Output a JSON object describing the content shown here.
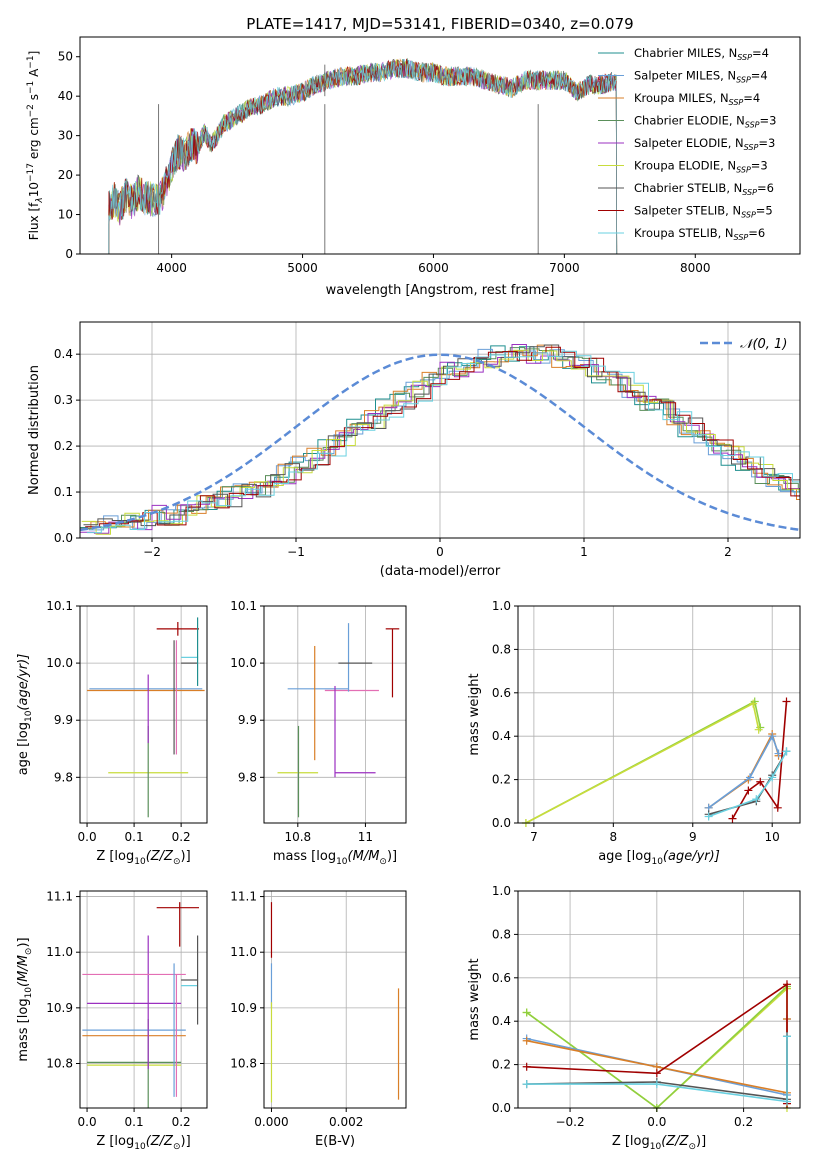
{
  "figure": {
    "title": "PLATE=1417, MJD=53141, FIBERID=0340, z=0.079"
  },
  "legend_colors": {
    "Chabrier MILES": "#1f8f8f",
    "Salpeter MILES": "#6a9fd8",
    "Kroupa MILES": "#d97f28",
    "Chabrier ELODIE": "#5a8f5a",
    "Salpeter ELODIE": "#9b30c0",
    "Kroupa ELODIE": "#c8dc3c",
    "Chabrier STELIB": "#555555",
    "Salpeter STELIB": "#a00000",
    "Kroupa STELIB": "#6ad0e0",
    "Kroupa ELODIE light": "#8fcf40",
    "pink": "#e36fb4"
  },
  "chart_data": [
    {
      "type": "line",
      "panel": "spectrum",
      "title": "PLATE=1417, MJD=53141, FIBERID=0340, z=0.079",
      "xlabel": "wavelength [Angstrom, rest frame]",
      "ylabel": "Flux [f",
      "ylabel_mid": "10",
      "ylabel_sup1": "−17",
      "ylabel_mid2": " erg cm",
      "ylabel_sup2": "−2",
      "ylabel_mid3": " s",
      "ylabel_sup3": "−1",
      "ylabel_mid4": " A",
      "ylabel_sup4": "−1",
      "ylabel_end": "]",
      "xlim": [
        3300,
        8800
      ],
      "ylim": [
        0,
        55
      ],
      "xticks": [
        4000,
        5000,
        6000,
        7000,
        8000
      ],
      "yticks": [
        0,
        10,
        20,
        30,
        40,
        50
      ],
      "grid": false,
      "legend_position": "upper right",
      "spectrum_envelope": {
        "x": [
          3520,
          3560,
          3600,
          3650,
          3700,
          3750,
          3800,
          3850,
          3900,
          3950,
          4000,
          4050,
          4100,
          4150,
          4200,
          4250,
          4300,
          4350,
          4400,
          4500,
          4600,
          4700,
          4800,
          4900,
          5000,
          5100,
          5200,
          5300,
          5400,
          5500,
          5600,
          5700,
          5800,
          5900,
          6000,
          6100,
          6200,
          6300,
          6400,
          6500,
          6600,
          6700,
          6800,
          6900,
          7000,
          7100,
          7200,
          7300,
          7400
        ],
        "y": [
          12,
          14,
          11,
          15,
          13,
          16,
          14,
          14,
          13,
          17,
          22,
          26,
          25,
          28,
          27,
          31,
          28,
          30,
          33,
          35,
          37,
          38,
          40,
          40,
          41,
          43,
          44,
          45,
          45,
          46,
          46,
          47,
          47,
          46,
          46,
          45,
          45,
          45,
          44,
          43,
          42,
          44,
          44,
          44,
          44,
          41,
          43,
          43,
          44
        ]
      },
      "series": [
        {
          "name": "Chabrier MILES, N",
          "sub": "SSP",
          "tail": "=4"
        },
        {
          "name": "Salpeter MILES, N",
          "sub": "SSP",
          "tail": "=4"
        },
        {
          "name": "Kroupa MILES, N",
          "sub": "SSP",
          "tail": "=4"
        },
        {
          "name": "Chabrier ELODIE, N",
          "sub": "SSP",
          "tail": "=3"
        },
        {
          "name": "Salpeter ELODIE, N",
          "sub": "SSP",
          "tail": "=3"
        },
        {
          "name": "Kroupa ELODIE, N",
          "sub": "SSP",
          "tail": "=3"
        },
        {
          "name": "Chabrier STELIB, N",
          "sub": "SSP",
          "tail": "=6"
        },
        {
          "name": "Salpeter STELIB, N",
          "sub": "SSP",
          "tail": "=5"
        },
        {
          "name": "Kroupa STELIB, N",
          "sub": "SSP",
          "tail": "=6"
        }
      ]
    },
    {
      "type": "bar",
      "panel": "residuals",
      "xlabel": "(data-model)/error",
      "ylabel": "Normed distribution",
      "xlim": [
        -2.5,
        2.5
      ],
      "ylim": [
        0,
        0.47
      ],
      "xticks": [
        -2,
        -1,
        0,
        1,
        2
      ],
      "yticks": [
        0.0,
        0.1,
        0.2,
        0.3,
        0.4
      ],
      "grid": true,
      "legend_position": "upper right",
      "legend_label": "𝒩(0, 1)",
      "bin_width": 0.1,
      "bin_start": -2.5,
      "histogram_base": [
        0.03,
        0.03,
        0.03,
        0.04,
        0.04,
        0.05,
        0.05,
        0.06,
        0.07,
        0.08,
        0.09,
        0.1,
        0.11,
        0.13,
        0.14,
        0.16,
        0.18,
        0.2,
        0.22,
        0.24,
        0.26,
        0.28,
        0.3,
        0.32,
        0.34,
        0.36,
        0.37,
        0.38,
        0.39,
        0.4,
        0.4,
        0.4,
        0.4,
        0.39,
        0.38,
        0.37,
        0.36,
        0.34,
        0.32,
        0.3,
        0.28,
        0.26,
        0.24,
        0.22,
        0.2,
        0.18,
        0.16,
        0.14,
        0.12,
        0.11,
        0.09
      ],
      "gaussian": {
        "mu": 0,
        "sigma": 1
      }
    },
    {
      "type": "scatter",
      "panel": "Z-age",
      "xlabel": "Z [log",
      "xlabel_sub": "10",
      "xlabel_end": "(Z/Z",
      "xlabel_sub2": "⊙",
      "xlabel_close": ")]",
      "ylabel": "age  [log",
      "ylabel_sub": "10",
      "ylabel_end": "(age/yr)]",
      "xlim": [
        -0.015,
        0.255
      ],
      "ylim": [
        9.72,
        10.1
      ],
      "xticks": [
        0.0,
        0.1,
        0.2
      ],
      "yticks": [
        9.8,
        9.9,
        10.0,
        10.1
      ],
      "grid": true,
      "points": [
        {
          "x": 0.13,
          "xerr": 0.085,
          "y": 9.808,
          "yerr": 0.0,
          "color": "#c8dc3c"
        },
        {
          "x": 0.13,
          "xerr": 0.0,
          "y": 9.81,
          "yerr": 0.08,
          "color": "#5a8f5a"
        },
        {
          "x": 0.125,
          "xerr": 0.12,
          "y": 9.955,
          "yerr": 0.0,
          "color": "#6a9fd8"
        },
        {
          "x": 0.125,
          "xerr": 0.125,
          "y": 9.952,
          "yerr": 0.0,
          "color": "#d97f28"
        },
        {
          "x": 0.13,
          "xerr": 0.0,
          "y": 9.92,
          "yerr": 0.06,
          "color": "#9b30c0"
        },
        {
          "x": 0.185,
          "xerr": 0.0,
          "y": 9.94,
          "yerr": 0.1,
          "color": "#555555"
        },
        {
          "x": 0.19,
          "xerr": 0.0,
          "y": 9.94,
          "yerr": 0.1,
          "color": "#e36fb4"
        },
        {
          "x": 0.193,
          "xerr": 0.045,
          "y": 10.06,
          "yerr": 0.012,
          "color": "#a00000"
        },
        {
          "x": 0.218,
          "xerr": 0.018,
          "y": 10.0,
          "yerr": 0.0,
          "color": "#555555"
        },
        {
          "x": 0.218,
          "xerr": 0.018,
          "y": 10.01,
          "yerr": 0.0,
          "color": "#6ad0e0"
        },
        {
          "x": 0.235,
          "xerr": 0.0,
          "y": 10.02,
          "yerr": 0.06,
          "color": "#1f8f8f"
        }
      ]
    },
    {
      "type": "scatter",
      "panel": "mass-age",
      "xlabel": "mass [log",
      "xlabel_sub": "10",
      "xlabel_end": "(M/M",
      "xlabel_sub2": "⊙",
      "xlabel_close": ")]",
      "xlim": [
        10.7,
        11.12
      ],
      "ylim": [
        9.72,
        10.1
      ],
      "xticks": [
        10.8,
        11.0
      ],
      "yticks": [
        9.8,
        9.9,
        10.0,
        10.1
      ],
      "grid": true,
      "points": [
        {
          "x": 10.8,
          "xerr": 0.06,
          "y": 9.808,
          "yerr": 0.0,
          "color": "#c8dc3c"
        },
        {
          "x": 10.802,
          "xerr": 0.0,
          "y": 9.81,
          "yerr": 0.08,
          "color": "#5a8f5a"
        },
        {
          "x": 10.86,
          "xerr": 0.09,
          "y": 9.955,
          "yerr": 0.0,
          "color": "#6a9fd8"
        },
        {
          "x": 10.85,
          "xerr": 0.0,
          "y": 9.93,
          "yerr": 0.1,
          "color": "#d97f28"
        },
        {
          "x": 10.96,
          "xerr": 0.08,
          "y": 9.952,
          "yerr": 0.0,
          "color": "#e36fb4"
        },
        {
          "x": 10.91,
          "xerr": 0.0,
          "y": 9.8,
          "yerr": 0.0,
          "color": "#9b30c0"
        },
        {
          "x": 10.97,
          "xerr": 0.06,
          "y": 9.808,
          "yerr": 0.0,
          "color": "#9b30c0"
        },
        {
          "x": 10.91,
          "xerr": 0.0,
          "y": 9.88,
          "yerr": 0.08,
          "color": "#9b30c0"
        },
        {
          "x": 10.95,
          "xerr": 0.0,
          "y": 10.01,
          "yerr": 0.06,
          "color": "#6a9fd8"
        },
        {
          "x": 10.97,
          "xerr": 0.05,
          "y": 10.0,
          "yerr": 0.0,
          "color": "#555555"
        },
        {
          "x": 11.08,
          "xerr": 0.02,
          "y": 10.06,
          "yerr": 0.0,
          "color": "#a00000"
        },
        {
          "x": 11.08,
          "xerr": 0.0,
          "y": 10.0,
          "yerr": 0.06,
          "color": "#a00000"
        }
      ]
    },
    {
      "type": "line",
      "panel": "age-weight",
      "xlabel": "age  [log",
      "xlabel_sub": "10",
      "xlabel_end": "(age/yr)]",
      "ylabel": "mass weight",
      "xlim": [
        6.8,
        10.35
      ],
      "ylim": [
        0,
        1.0
      ],
      "xticks": [
        7,
        8,
        9,
        10
      ],
      "yticks": [
        0.0,
        0.2,
        0.4,
        0.6,
        0.8,
        1.0
      ],
      "grid": true,
      "series": [
        {
          "color": "#8fcf40",
          "x": [
            6.9,
            9.78,
            9.85
          ],
          "y": [
            0.0,
            0.56,
            0.44
          ]
        },
        {
          "color": "#c8dc3c",
          "x": [
            6.9,
            9.76,
            9.83
          ],
          "y": [
            0.0,
            0.55,
            0.43
          ]
        },
        {
          "color": "#d97f28",
          "x": [
            9.2,
            9.7,
            10.0,
            10.08
          ],
          "y": [
            0.07,
            0.2,
            0.41,
            0.31
          ]
        },
        {
          "color": "#6a9fd8",
          "x": [
            9.2,
            9.72,
            10.0,
            10.08
          ],
          "y": [
            0.07,
            0.21,
            0.4,
            0.32
          ]
        },
        {
          "color": "#a00000",
          "x": [
            9.5,
            9.7,
            9.85,
            10.07,
            10.18
          ],
          "y": [
            0.02,
            0.15,
            0.19,
            0.07,
            0.56
          ]
        },
        {
          "color": "#555555",
          "x": [
            9.2,
            9.8,
            10.0,
            10.18
          ],
          "y": [
            0.04,
            0.1,
            0.22,
            0.33
          ]
        },
        {
          "color": "#6ad0e0",
          "x": [
            9.2,
            9.8,
            10.0,
            10.18
          ],
          "y": [
            0.03,
            0.11,
            0.21,
            0.33
          ]
        }
      ]
    },
    {
      "type": "scatter",
      "panel": "Z-mass",
      "xlabel": "Z [log",
      "xlabel_sub": "10",
      "xlabel_end": "(Z/Z",
      "xlabel_sub2": "⊙",
      "xlabel_close": ")]",
      "ylabel": "mass [log",
      "ylabel_sub": "10",
      "ylabel_end": "(M/M",
      "ylabel_sub2": "⊙",
      "ylabel_close": ")]",
      "xlim": [
        -0.015,
        0.255
      ],
      "ylim": [
        10.72,
        11.11
      ],
      "xticks": [
        0.0,
        0.1,
        0.2
      ],
      "yticks": [
        10.8,
        10.9,
        11.0,
        11.1
      ],
      "grid": true,
      "points": [
        {
          "x": 0.1,
          "xerr": 0.1,
          "y": 10.797,
          "yerr": 0.0,
          "color": "#c8dc3c"
        },
        {
          "x": 0.1,
          "xerr": 0.1,
          "y": 10.802,
          "yerr": 0.0,
          "color": "#5a8f5a"
        },
        {
          "x": 0.13,
          "xerr": 0.0,
          "y": 10.8,
          "yerr": 0.08,
          "color": "#5a8f5a"
        },
        {
          "x": 0.1,
          "xerr": 0.11,
          "y": 10.85,
          "yerr": 0.0,
          "color": "#d97f28"
        },
        {
          "x": 0.1,
          "xerr": 0.11,
          "y": 10.86,
          "yerr": 0.0,
          "color": "#6a9fd8"
        },
        {
          "x": 0.1,
          "xerr": 0.1,
          "y": 10.908,
          "yerr": 0.0,
          "color": "#9b30c0"
        },
        {
          "x": 0.13,
          "xerr": 0.0,
          "y": 10.91,
          "yerr": 0.12,
          "color": "#9b30c0"
        },
        {
          "x": 0.1,
          "xerr": 0.11,
          "y": 10.96,
          "yerr": 0.0,
          "color": "#e36fb4"
        },
        {
          "x": 0.185,
          "xerr": 0.0,
          "y": 10.86,
          "yerr": 0.12,
          "color": "#6a9fd8"
        },
        {
          "x": 0.19,
          "xerr": 0.0,
          "y": 10.85,
          "yerr": 0.11,
          "color": "#e36fb4"
        },
        {
          "x": 0.193,
          "xerr": 0.045,
          "y": 11.08,
          "yerr": 0.0,
          "color": "#a00000"
        },
        {
          "x": 0.197,
          "xerr": 0.0,
          "y": 11.05,
          "yerr": 0.04,
          "color": "#a00000"
        },
        {
          "x": 0.218,
          "xerr": 0.018,
          "y": 10.95,
          "yerr": 0.0,
          "color": "#555555"
        },
        {
          "x": 0.218,
          "xerr": 0.018,
          "y": 10.94,
          "yerr": 0.0,
          "color": "#6ad0e0"
        },
        {
          "x": 0.235,
          "xerr": 0.0,
          "y": 10.95,
          "yerr": 0.08,
          "color": "#555555"
        }
      ]
    },
    {
      "type": "scatter",
      "panel": "EBV-mass",
      "xlabel": "E(B-V)",
      "xlim": [
        -0.0002,
        0.0036
      ],
      "ylim": [
        10.72,
        11.11
      ],
      "xticks": [
        0.0,
        0.002
      ],
      "xticklabels": [
        "0.000",
        "0.002"
      ],
      "yticks": [
        10.8,
        10.9,
        11.0,
        11.1
      ],
      "grid": true,
      "points": [
        {
          "x": 0.0,
          "y": 11.04,
          "yerr": 0.05,
          "color": "#a00000"
        },
        {
          "x": 0.0,
          "y": 10.94,
          "yerr": 0.04,
          "color": "#6a9fd8"
        },
        {
          "x": 0.0,
          "y": 10.82,
          "yerr": 0.09,
          "color": "#c8dc3c"
        },
        {
          "x": 0.0034,
          "y": 10.835,
          "yerr": 0.1,
          "color": "#d97f28"
        }
      ]
    },
    {
      "type": "line",
      "panel": "Z-weight",
      "xlabel": "Z [log",
      "xlabel_sub": "10",
      "xlabel_end": "(Z/Z",
      "xlabel_sub2": "⊙",
      "xlabel_close": ")]",
      "ylabel": "mass weight",
      "xlim": [
        -0.32,
        0.33
      ],
      "ylim": [
        0,
        1.0
      ],
      "xticks": [
        -0.2,
        0.0,
        0.2
      ],
      "xticklabels": [
        "−0.2",
        "0.0",
        "0.2"
      ],
      "yticks": [
        0.0,
        0.2,
        0.4,
        0.6,
        0.8,
        1.0
      ],
      "grid": true,
      "series": [
        {
          "color": "#c8dc3c",
          "x": [
            -0.3,
            0.0,
            0.3,
            0.3
          ],
          "y": [
            0.44,
            0.0,
            0.55,
            0.0
          ]
        },
        {
          "color": "#8fcf40",
          "x": [
            -0.3,
            0.0,
            0.3
          ],
          "y": [
            0.44,
            0.0,
            0.56
          ]
        },
        {
          "color": "#6a9fd8",
          "x": [
            -0.3,
            0.0,
            0.3,
            0.3
          ],
          "y": [
            0.32,
            0.19,
            0.06,
            0.41
          ]
        },
        {
          "color": "#d97f28",
          "x": [
            -0.3,
            0.0,
            0.3,
            0.3
          ],
          "y": [
            0.31,
            0.19,
            0.07,
            0.41
          ]
        },
        {
          "color": "#a00000",
          "x": [
            -0.3,
            0.0,
            0.3,
            0.3
          ],
          "y": [
            0.19,
            0.16,
            0.57,
            0.02
          ]
        },
        {
          "color": "#555555",
          "x": [
            -0.3,
            0.0,
            0.3,
            0.3
          ],
          "y": [
            0.11,
            0.12,
            0.04,
            0.33
          ]
        },
        {
          "color": "#6ad0e0",
          "x": [
            -0.3,
            0.0,
            0.3,
            0.3
          ],
          "y": [
            0.11,
            0.11,
            0.03,
            0.33
          ]
        }
      ]
    }
  ]
}
